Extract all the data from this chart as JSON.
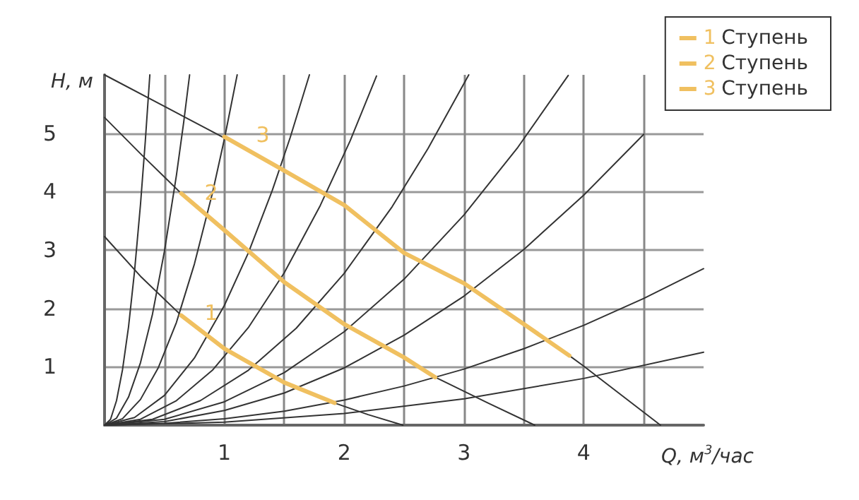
{
  "chart_data": {
    "type": "line",
    "xlabel": "Q, м$^{3}$/час",
    "ylabel": "H, м",
    "xlim": [
      0,
      5
    ],
    "ylim": [
      0,
      6
    ],
    "xticks": [
      {
        "value": 0.5,
        "label": null
      },
      1,
      {
        "value": 1.5,
        "label": null
      },
      2,
      {
        "value": 2.5,
        "label": null
      },
      3,
      {
        "value": 3.5,
        "label": null
      },
      4,
      {
        "value": 4.5,
        "label": null
      }
    ],
    "yticks": [
      1,
      2,
      3,
      4,
      5
    ],
    "grid": true,
    "legend": "top right",
    "marker": "none",
    "line_style": "solid",
    "annotations": [
      "1",
      "2",
      "3"
    ],
    "series": [
      {
        "color": "#333333",
        "x": [
          0,
          0.5,
          1.0
        ],
        "values": [
          6.0,
          5.46,
          4.92
        ]
      },
      {
        "color": "#333333",
        "x": [
          3.88,
          4.0,
          4.64
        ],
        "values": [
          1.19,
          1.01,
          0
        ]
      },
      {
        "color": "#333333",
        "x": [
          0,
          0.3,
          0.64
        ],
        "values": [
          5.27,
          4.65,
          3.97
        ]
      },
      {
        "color": "#333333",
        "x": [
          2.76,
          3.2,
          3.59
        ],
        "values": [
          0.82,
          0.38,
          0
        ]
      },
      {
        "color": "#333333",
        "x": [
          0,
          0.3,
          0.64
        ],
        "values": [
          3.23,
          2.55,
          1.88
        ]
      },
      {
        "color": "#333333",
        "x": [
          1.92,
          2.2,
          2.49
        ],
        "values": [
          0.38,
          0.18,
          0
        ]
      },
      {
        "color": "#333333",
        "x": [
          0,
          0.05,
          0.1,
          0.15,
          0.2,
          0.25,
          0.3,
          0.34,
          0.378
        ],
        "values": [
          0,
          0.1,
          0.42,
          0.95,
          1.68,
          2.63,
          3.78,
          4.86,
          6.0
        ]
      },
      {
        "color": "#333333",
        "x": [
          0,
          0.1,
          0.2,
          0.3,
          0.4,
          0.5,
          0.6,
          0.66,
          0.71
        ],
        "values": [
          0,
          0.12,
          0.48,
          1.07,
          1.9,
          2.98,
          4.28,
          5.18,
          6.0
        ]
      },
      {
        "color": "#333333",
        "x": [
          0,
          0.15,
          0.3,
          0.45,
          0.6,
          0.75,
          0.9,
          1.0,
          1.107
        ],
        "values": [
          0,
          0.11,
          0.44,
          0.99,
          1.76,
          2.76,
          3.97,
          4.9,
          6.0
        ]
      },
      {
        "color": "#333333",
        "x": [
          0,
          0.25,
          0.5,
          0.75,
          1.0,
          1.2,
          1.4,
          1.55,
          1.71
        ],
        "values": [
          0,
          0.13,
          0.51,
          1.15,
          2.05,
          2.95,
          4.02,
          4.93,
          6.0
        ]
      },
      {
        "color": "#333333",
        "x": [
          0,
          0.3,
          0.6,
          0.9,
          1.2,
          1.5,
          1.8,
          2.05,
          2.27
        ],
        "values": [
          0,
          0.1,
          0.42,
          0.94,
          1.67,
          2.61,
          3.76,
          4.87,
          5.98
        ]
      },
      {
        "color": "#333333",
        "x": [
          0,
          0.4,
          0.8,
          1.2,
          1.6,
          2.0,
          2.4,
          2.7,
          3.04
        ],
        "values": [
          0,
          0.1,
          0.42,
          0.94,
          1.66,
          2.6,
          3.74,
          4.74,
          6.0
        ]
      },
      {
        "color": "#333333",
        "x": [
          0,
          0.5,
          1,
          1.5,
          2,
          2.5,
          3,
          3.45,
          3.87
        ],
        "values": [
          0,
          0.1,
          0.4,
          0.9,
          1.6,
          2.5,
          3.6,
          4.76,
          5.99
        ]
      },
      {
        "color": "#333333",
        "x": [
          0,
          0.5,
          1,
          1.5,
          2,
          2.5,
          3,
          3.5,
          4,
          4.5
        ],
        "values": [
          0,
          0.06,
          0.25,
          0.55,
          0.98,
          1.54,
          2.21,
          3.01,
          3.94,
          4.98
        ]
      },
      {
        "color": "#333333",
        "x": [
          0,
          0.5,
          1,
          1.5,
          2,
          2.5,
          3,
          3.5,
          4,
          4.5,
          5
        ],
        "values": [
          0,
          0.03,
          0.11,
          0.24,
          0.43,
          0.67,
          0.96,
          1.31,
          1.71,
          2.17,
          2.68
        ]
      },
      {
        "color": "#333333",
        "x": [
          0,
          1,
          2,
          3,
          4,
          5
        ],
        "values": [
          0,
          0.05,
          0.2,
          0.45,
          0.8,
          1.25
        ]
      },
      {
        "name": "1 Ступень",
        "color": "#f0c060",
        "x": [
          0.64,
          1.0,
          1.5,
          1.92
        ],
        "values": [
          1.88,
          1.31,
          0.73,
          0.38
        ]
      },
      {
        "name": "2 Ступень",
        "color": "#f0c060",
        "x": [
          0.64,
          1.0,
          1.5,
          2.0,
          2.5,
          2.76
        ],
        "values": [
          3.97,
          3.34,
          2.45,
          1.73,
          1.16,
          0.82
        ]
      },
      {
        "name": "3 Ступень",
        "color": "#f0c060",
        "x": [
          1.0,
          1.5,
          2.0,
          2.5,
          3.0,
          3.5,
          3.88
        ],
        "values": [
          4.94,
          4.36,
          3.77,
          2.95,
          2.43,
          1.73,
          1.19
        ]
      }
    ]
  }
}
